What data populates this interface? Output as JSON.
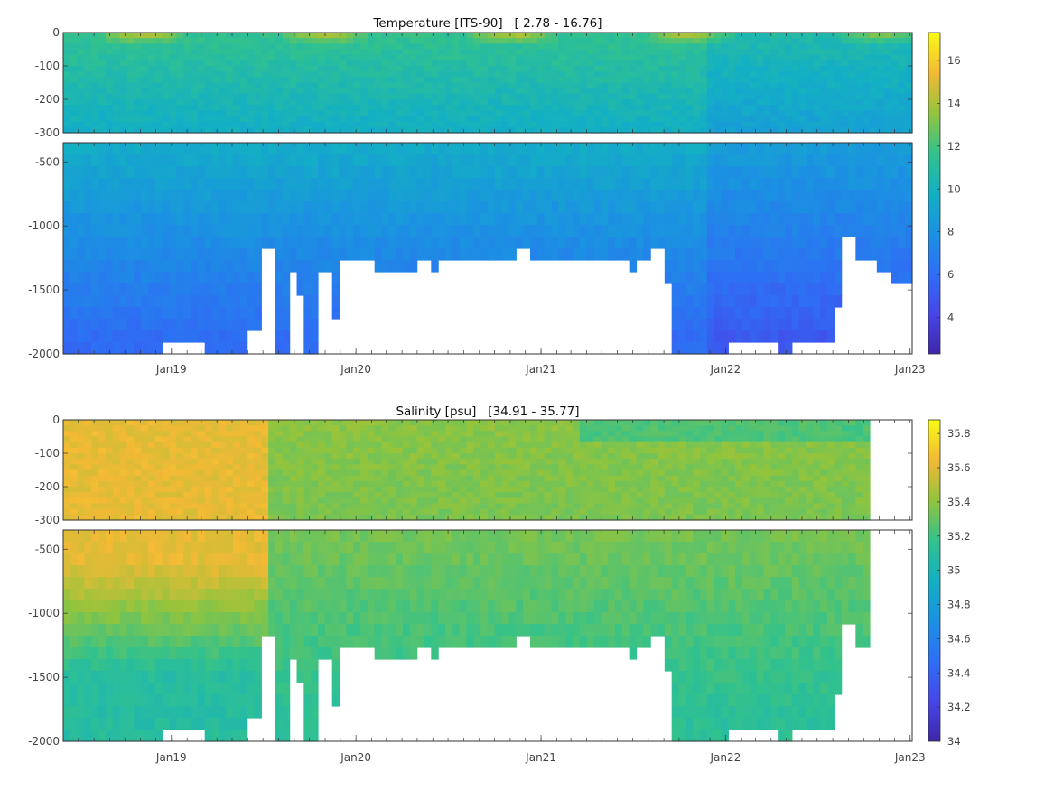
{
  "chart_data": [
    {
      "type": "heatmap",
      "title": "Temperature [ITS-90]   [ 2.78 - 16.76]",
      "x_ticks": [
        "Jan19",
        "Jan20",
        "Jan21",
        "Jan22",
        "Jan23"
      ],
      "x_tick_dates": [
        "2019-01-01",
        "2020-01-01",
        "2021-01-01",
        "2022-01-01",
        "2023-01-01"
      ],
      "xlim": [
        "2018-06-01",
        "2023-01-05"
      ],
      "upper_panel": {
        "ylim": [
          -300,
          0
        ],
        "y_ticks": [
          0,
          -100,
          -200,
          -300
        ]
      },
      "lower_panel": {
        "ylim": [
          -2000,
          -350
        ],
        "y_ticks": [
          -500,
          -1000,
          -1500,
          -2000
        ]
      },
      "colorbar": {
        "range": [
          2.3,
          17.3
        ],
        "ticks": [
          4,
          6,
          8,
          10,
          12,
          14,
          16
        ]
      },
      "value_range": [
        2.78,
        16.76
      ]
    },
    {
      "type": "heatmap",
      "title": "Salinity [psu]   [34.91 - 35.77]",
      "x_ticks": [
        "Jan19",
        "Jan20",
        "Jan21",
        "Jan22",
        "Jan23"
      ],
      "x_tick_dates": [
        "2019-01-01",
        "2020-01-01",
        "2021-01-01",
        "2022-01-01",
        "2023-01-01"
      ],
      "xlim": [
        "2018-06-01",
        "2023-01-05"
      ],
      "upper_panel": {
        "ylim": [
          -300,
          0
        ],
        "y_ticks": [
          0,
          -100,
          -200,
          -300
        ]
      },
      "lower_panel": {
        "ylim": [
          -2000,
          -350
        ],
        "y_ticks": [
          -500,
          -1000,
          -1500,
          -2000
        ]
      },
      "colorbar": {
        "range": [
          34.0,
          35.88
        ],
        "ticks": [
          34,
          34.2,
          34.4,
          34.6,
          34.8,
          35,
          35.2,
          35.4,
          35.6,
          35.8
        ]
      },
      "value_range": [
        34.91,
        35.77
      ]
    }
  ]
}
